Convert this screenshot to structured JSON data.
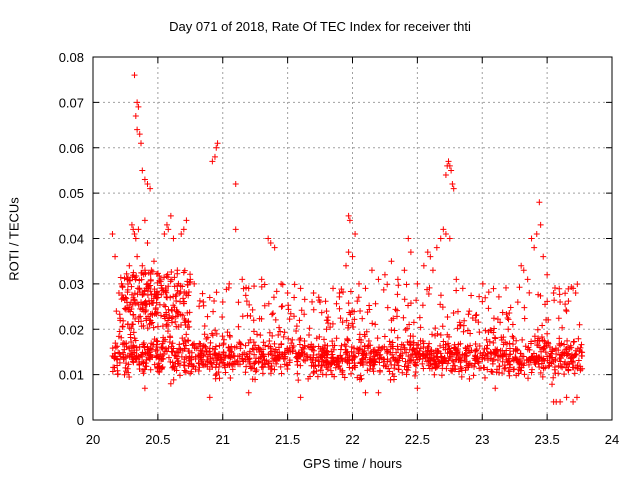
{
  "chart_data": {
    "type": "scatter",
    "title": "Day 071 of 2018, Rate Of TEC Index for receiver thti",
    "xlabel": "GPS time / hours",
    "ylabel": "ROTI / TECUs",
    "xlim": [
      20,
      24
    ],
    "ylim": [
      0,
      0.08
    ],
    "x_ticks": [
      20,
      20.5,
      21,
      21.5,
      22,
      22.5,
      23,
      23.5,
      24
    ],
    "x_tick_labels": [
      "20",
      "20.5",
      "21",
      "21.5",
      "22",
      "22.5",
      "23",
      "23.5",
      "24"
    ],
    "y_ticks": [
      0,
      0.01,
      0.02,
      0.03,
      0.04,
      0.05,
      0.06,
      0.07,
      0.08
    ],
    "y_tick_labels": [
      "0",
      "0.01",
      "0.02",
      "0.03",
      "0.04",
      "0.05",
      "0.06",
      "0.07",
      "0.08"
    ],
    "grid": true,
    "marker": "+",
    "color": "#ff0000",
    "series": [
      {
        "name": "ROTI",
        "points": [
          [
            20.15,
            0.041
          ],
          [
            20.17,
            0.036
          ],
          [
            20.18,
            0.024
          ],
          [
            20.2,
            0.028
          ],
          [
            20.22,
            0.03
          ],
          [
            20.25,
            0.027
          ],
          [
            20.28,
            0.034
          ],
          [
            20.3,
            0.043
          ],
          [
            20.31,
            0.042
          ],
          [
            20.32,
            0.041
          ],
          [
            20.33,
            0.04
          ],
          [
            20.35,
            0.042
          ],
          [
            20.34,
            0.036
          ],
          [
            20.38,
            0.034
          ],
          [
            20.4,
            0.044
          ],
          [
            20.42,
            0.039
          ],
          [
            20.45,
            0.033
          ],
          [
            20.47,
            0.035
          ],
          [
            20.5,
            0.027
          ],
          [
            20.55,
            0.041
          ],
          [
            20.57,
            0.043
          ],
          [
            20.58,
            0.042
          ],
          [
            20.6,
            0.045
          ],
          [
            20.62,
            0.04
          ],
          [
            20.65,
            0.033
          ],
          [
            20.68,
            0.041
          ],
          [
            20.7,
            0.042
          ],
          [
            20.72,
            0.044
          ],
          [
            20.75,
            0.031
          ],
          [
            20.78,
            0.03
          ],
          [
            20.85,
            0.026
          ],
          [
            20.9,
            0.027
          ],
          [
            21.0,
            0.026
          ],
          [
            21.05,
            0.03
          ],
          [
            21.1,
            0.042
          ],
          [
            21.15,
            0.031
          ],
          [
            21.2,
            0.029
          ],
          [
            21.3,
            0.031
          ],
          [
            21.35,
            0.04
          ],
          [
            21.37,
            0.039
          ],
          [
            21.4,
            0.038
          ],
          [
            21.45,
            0.03
          ],
          [
            21.5,
            0.028
          ],
          [
            21.55,
            0.027
          ],
          [
            21.6,
            0.029
          ],
          [
            21.7,
            0.028
          ],
          [
            21.75,
            0.026
          ],
          [
            21.8,
            0.024
          ],
          [
            21.85,
            0.029
          ],
          [
            21.9,
            0.028
          ],
          [
            21.95,
            0.034
          ],
          [
            21.97,
            0.037
          ],
          [
            22.0,
            0.036
          ],
          [
            22.02,
            0.041
          ],
          [
            22.05,
            0.03
          ],
          [
            22.1,
            0.029
          ],
          [
            22.15,
            0.033
          ],
          [
            22.2,
            0.031
          ],
          [
            22.25,
            0.032
          ],
          [
            22.3,
            0.035
          ],
          [
            22.35,
            0.031
          ],
          [
            22.4,
            0.033
          ],
          [
            22.43,
            0.04
          ],
          [
            22.45,
            0.037
          ],
          [
            22.5,
            0.03
          ],
          [
            22.55,
            0.034
          ],
          [
            22.58,
            0.037
          ],
          [
            22.6,
            0.036
          ],
          [
            22.62,
            0.033
          ],
          [
            22.65,
            0.038
          ],
          [
            22.68,
            0.04
          ],
          [
            22.7,
            0.042
          ],
          [
            22.72,
            0.041
          ],
          [
            22.75,
            0.04
          ],
          [
            22.8,
            0.031
          ],
          [
            22.85,
            0.029
          ],
          [
            22.9,
            0.024
          ],
          [
            22.95,
            0.022
          ],
          [
            23.3,
            0.034
          ],
          [
            23.32,
            0.033
          ],
          [
            23.35,
            0.031
          ],
          [
            23.38,
            0.04
          ],
          [
            23.4,
            0.038
          ],
          [
            23.42,
            0.041
          ],
          [
            23.45,
            0.043
          ],
          [
            23.47,
            0.036
          ],
          [
            23.5,
            0.032
          ],
          [
            23.55,
            0.028
          ],
          [
            23.6,
            0.026
          ],
          [
            23.65,
            0.024
          ],
          [
            23.7,
            0.029
          ],
          [
            23.72,
            0.028
          ],
          [
            23.75,
            0.021
          ],
          [
            20.32,
            0.076
          ],
          [
            20.34,
            0.07
          ],
          [
            20.35,
            0.069
          ],
          [
            20.33,
            0.067
          ],
          [
            20.34,
            0.064
          ],
          [
            20.36,
            0.063
          ],
          [
            20.37,
            0.061
          ],
          [
            20.38,
            0.055
          ],
          [
            20.4,
            0.053
          ],
          [
            20.42,
            0.052
          ],
          [
            20.44,
            0.051
          ],
          [
            20.92,
            0.057
          ],
          [
            20.94,
            0.058
          ],
          [
            20.95,
            0.06
          ],
          [
            20.96,
            0.061
          ],
          [
            21.1,
            0.052
          ],
          [
            21.97,
            0.045
          ],
          [
            21.98,
            0.044
          ],
          [
            22.72,
            0.054
          ],
          [
            22.73,
            0.056
          ],
          [
            22.74,
            0.057
          ],
          [
            22.75,
            0.056
          ],
          [
            22.76,
            0.055
          ],
          [
            22.77,
            0.052
          ],
          [
            22.78,
            0.051
          ],
          [
            23.44,
            0.048
          ],
          [
            20.4,
            0.007
          ],
          [
            20.6,
            0.008
          ],
          [
            20.9,
            0.005
          ],
          [
            21.2,
            0.006
          ],
          [
            21.6,
            0.005
          ],
          [
            22.1,
            0.006
          ],
          [
            22.2,
            0.006
          ],
          [
            22.5,
            0.007
          ],
          [
            23.1,
            0.007
          ],
          [
            23.55,
            0.004
          ],
          [
            23.57,
            0.004
          ],
          [
            23.6,
            0.004
          ],
          [
            23.65,
            0.005
          ],
          [
            23.7,
            0.004
          ],
          [
            23.73,
            0.005
          ],
          [
            23.2,
            0.02
          ],
          [
            23.5,
            0.019
          ],
          [
            22.3,
            0.022
          ],
          [
            21.8,
            0.02
          ],
          [
            21.2,
            0.017
          ]
        ]
      }
    ],
    "dense_band": {
      "x_start": 20.15,
      "x_end": 23.77,
      "center_rule": "0.013 until 20.75 then 0.012",
      "spread_low": 0.007,
      "spread_high": 0.022,
      "upper_cloud_range": [
        0.02,
        0.033
      ],
      "upper_cloud_x_range": [
        20.2,
        20.75
      ],
      "count": 1400
    }
  }
}
